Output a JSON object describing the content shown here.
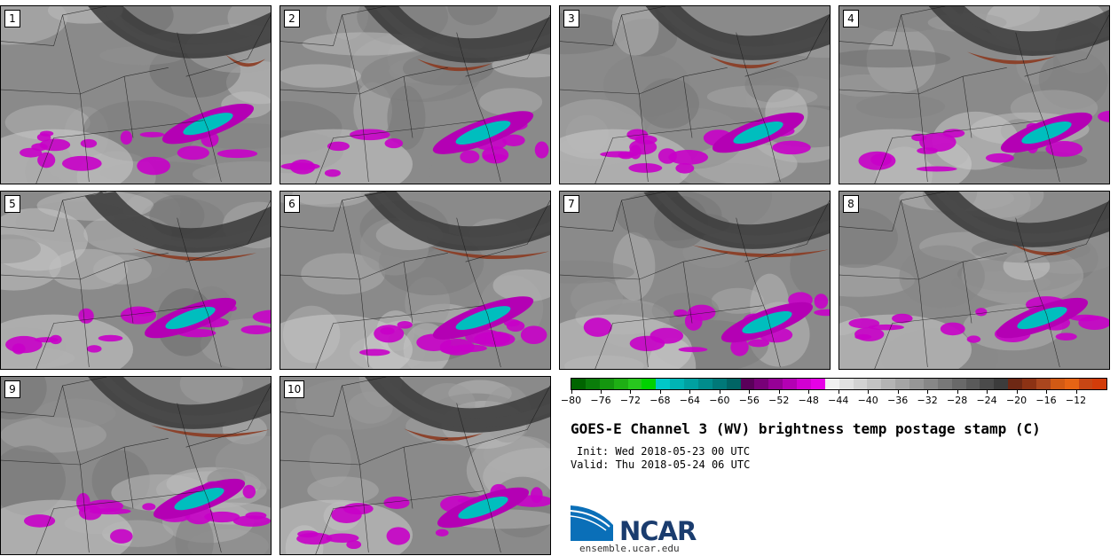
{
  "panels": [
    {
      "label": "1"
    },
    {
      "label": "2"
    },
    {
      "label": "3"
    },
    {
      "label": "4"
    },
    {
      "label": "5"
    },
    {
      "label": "6"
    },
    {
      "label": "7"
    },
    {
      "label": "8"
    },
    {
      "label": "9"
    },
    {
      "label": "10"
    }
  ],
  "colorbar": {
    "colors": [
      "#006400",
      "#0a7d0a",
      "#14960f",
      "#1eaf14",
      "#28c81e",
      "#00d200",
      "#00c8c8",
      "#00b4b4",
      "#00a0a0",
      "#008c8c",
      "#007878",
      "#006464",
      "#5a005a",
      "#780078",
      "#960096",
      "#b400b4",
      "#d200d2",
      "#e600e6",
      "#f0f0f0",
      "#e1e1e1",
      "#d2d2d2",
      "#c3c3c3",
      "#b4b4b4",
      "#a5a5a5",
      "#969696",
      "#878787",
      "#787878",
      "#696969",
      "#5a5a5a",
      "#4b4b4b",
      "#3c3c3c",
      "#6e2814",
      "#8c3214",
      "#aa461e",
      "#d25a14",
      "#e66414",
      "#c84614",
      "#d23c0a"
    ],
    "ticks": [
      "−80",
      "−76",
      "−72",
      "−68",
      "−64",
      "−60",
      "−56",
      "−52",
      "−48",
      "−44",
      "−40",
      "−36",
      "−32",
      "−28",
      "−24",
      "−20",
      "−16",
      "−12"
    ]
  },
  "title": "GOES-E Channel 3 (WV) brightness temp postage stamp (C)",
  "init": "Init: Wed 2018-05-23 00 UTC",
  "valid": "Valid: Thu 2018-05-24 06 UTC",
  "logo": {
    "text": "NCAR",
    "url": "ensemble.ucar.edu"
  }
}
